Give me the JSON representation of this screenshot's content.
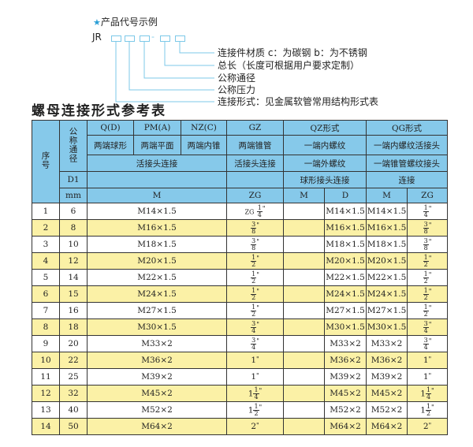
{
  "legend": {
    "heading": "产品代号示例",
    "code_prefix": "JR",
    "dash": "-",
    "labels": [
      "连接件材质    c：为碳钢   b：为不锈钢",
      "总长（长度可根据用户要求定制）",
      "公称通径",
      "公称压力",
      "连接形式：见金属软管常用结构形式表"
    ]
  },
  "title": "螺母连接形式参考表",
  "colors": {
    "header": "#86c9ea",
    "alt_row": "#fbf1a6",
    "accent": "#2a9fd6"
  },
  "header": {
    "seq": "序号",
    "nominal": "公称通径",
    "qd": "Q(D)",
    "pma": "PM(A)",
    "nzc": "NZ(C)",
    "gz": "GZ",
    "qz": "QZ形式",
    "qg": "QG形式",
    "qd_desc": "两端球形",
    "pma_desc": "两端平面",
    "nzc_desc": "两端内锥",
    "gz_desc": "两端锥管",
    "qz_desc": "一端内螺纹",
    "qg_desc": "一端内螺纹活接头",
    "union": "活接头连接",
    "gz_union": "活接头连接",
    "qz_desc2": "一端外螺纹",
    "qg_desc2": "一端锥管螺纹接头",
    "d1": "D1",
    "qz_desc3": "球形接头连接",
    "qg_desc3": "连接",
    "mm": "mm",
    "m": "M",
    "zg": "ZG",
    "qz_m": "M",
    "qz_d": "D",
    "qg_m": "M",
    "qg_zg": "ZG"
  },
  "rows": [
    {
      "no": "1",
      "d": "6",
      "m": "M14×1.5",
      "zg": {
        "pre": "ZG",
        "int": "",
        "num": "1",
        "den": "4"
      },
      "qz_m": "",
      "qz_d": "M14×1.5",
      "qg_m": "M14×1.5",
      "qg_zg": {
        "int": "",
        "num": "1",
        "den": "4"
      }
    },
    {
      "no": "2",
      "d": "8",
      "m": "M16×1.5",
      "zg": {
        "pre": "",
        "int": "",
        "num": "3",
        "den": "8"
      },
      "qz_m": "",
      "qz_d": "M16×1.5",
      "qg_m": "M16×1.5",
      "qg_zg": {
        "int": "",
        "num": "3",
        "den": "8"
      }
    },
    {
      "no": "3",
      "d": "10",
      "m": "M18×1.5",
      "zg": {
        "pre": "",
        "int": "",
        "num": "3",
        "den": "8"
      },
      "qz_m": "",
      "qz_d": "M18×1.5",
      "qg_m": "M18×1.5",
      "qg_zg": {
        "int": "",
        "num": "3",
        "den": "8"
      }
    },
    {
      "no": "4",
      "d": "12",
      "m": "M20×1.5",
      "zg": {
        "pre": "",
        "int": "",
        "num": "1",
        "den": "2"
      },
      "qz_m": "",
      "qz_d": "M20×1.5",
      "qg_m": "M20×1.5",
      "qg_zg": {
        "int": "",
        "num": "1",
        "den": "2"
      }
    },
    {
      "no": "5",
      "d": "14",
      "m": "M22×1.5",
      "zg": {
        "pre": "",
        "int": "",
        "num": "1",
        "den": "2"
      },
      "qz_m": "",
      "qz_d": "M22×1.5",
      "qg_m": "M22×1.5",
      "qg_zg": {
        "int": "",
        "num": "1",
        "den": "2"
      }
    },
    {
      "no": "6",
      "d": "15",
      "m": "M24×1.5",
      "zg": {
        "pre": "",
        "int": "",
        "num": "1",
        "den": "2"
      },
      "qz_m": "",
      "qz_d": "M24×1.5",
      "qg_m": "M24×1.5",
      "qg_zg": {
        "int": "",
        "num": "1",
        "den": "2"
      }
    },
    {
      "no": "7",
      "d": "16",
      "m": "M27×1.5",
      "zg": {
        "pre": "",
        "int": "",
        "num": "1",
        "den": "2"
      },
      "qz_m": "",
      "qz_d": "M27×1.5",
      "qg_m": "M27×1.5",
      "qg_zg": {
        "int": "",
        "num": "1",
        "den": "2"
      }
    },
    {
      "no": "8",
      "d": "18",
      "m": "M30×1.5",
      "zg": {
        "pre": "",
        "int": "",
        "num": "3",
        "den": "4"
      },
      "qz_m": "",
      "qz_d": "M30×1.5",
      "qg_m": "M30×1.5",
      "qg_zg": {
        "int": "",
        "num": "3",
        "den": "4"
      }
    },
    {
      "no": "9",
      "d": "20",
      "m": "M33×2",
      "zg": {
        "pre": "",
        "int": "",
        "num": "3",
        "den": "4"
      },
      "qz_m": "",
      "qz_d": "M33×2",
      "qg_m": "M33×2",
      "qg_zg": {
        "int": "",
        "num": "3",
        "den": "4"
      }
    },
    {
      "no": "10",
      "d": "22",
      "m": "M36×2",
      "zg": {
        "pre": "",
        "int": "1",
        "num": "",
        "den": ""
      },
      "qz_m": "",
      "qz_d": "M36×2",
      "qg_m": "M36×2",
      "qg_zg": {
        "int": "1",
        "num": "",
        "den": ""
      }
    },
    {
      "no": "11",
      "d": "25",
      "m": "M39×2",
      "zg": {
        "pre": "",
        "int": "1",
        "num": "",
        "den": ""
      },
      "qz_m": "",
      "qz_d": "M39×2",
      "qg_m": "M39×2",
      "qg_zg": {
        "int": "1",
        "num": "",
        "den": ""
      }
    },
    {
      "no": "12",
      "d": "32",
      "m": "M45×2",
      "zg": {
        "pre": "",
        "int": "1",
        "num": "1",
        "den": "4"
      },
      "qz_m": "",
      "qz_d": "M45×2",
      "qg_m": "M45×2",
      "qg_zg": {
        "int": "1",
        "num": "1",
        "den": "4"
      }
    },
    {
      "no": "13",
      "d": "40",
      "m": "M52×2",
      "zg": {
        "pre": "",
        "int": "1",
        "num": "1",
        "den": "2"
      },
      "qz_m": "",
      "qz_d": "M52×2",
      "qg_m": "M52×2",
      "qg_zg": {
        "int": "1",
        "num": "1",
        "den": "2"
      }
    },
    {
      "no": "14",
      "d": "50",
      "m": "M64×2",
      "zg": {
        "pre": "",
        "int": "2",
        "num": "",
        "den": ""
      },
      "qz_m": "",
      "qz_d": "M64×2",
      "qg_m": "M64×2",
      "qg_zg": {
        "int": "2",
        "num": "",
        "den": ""
      }
    }
  ]
}
